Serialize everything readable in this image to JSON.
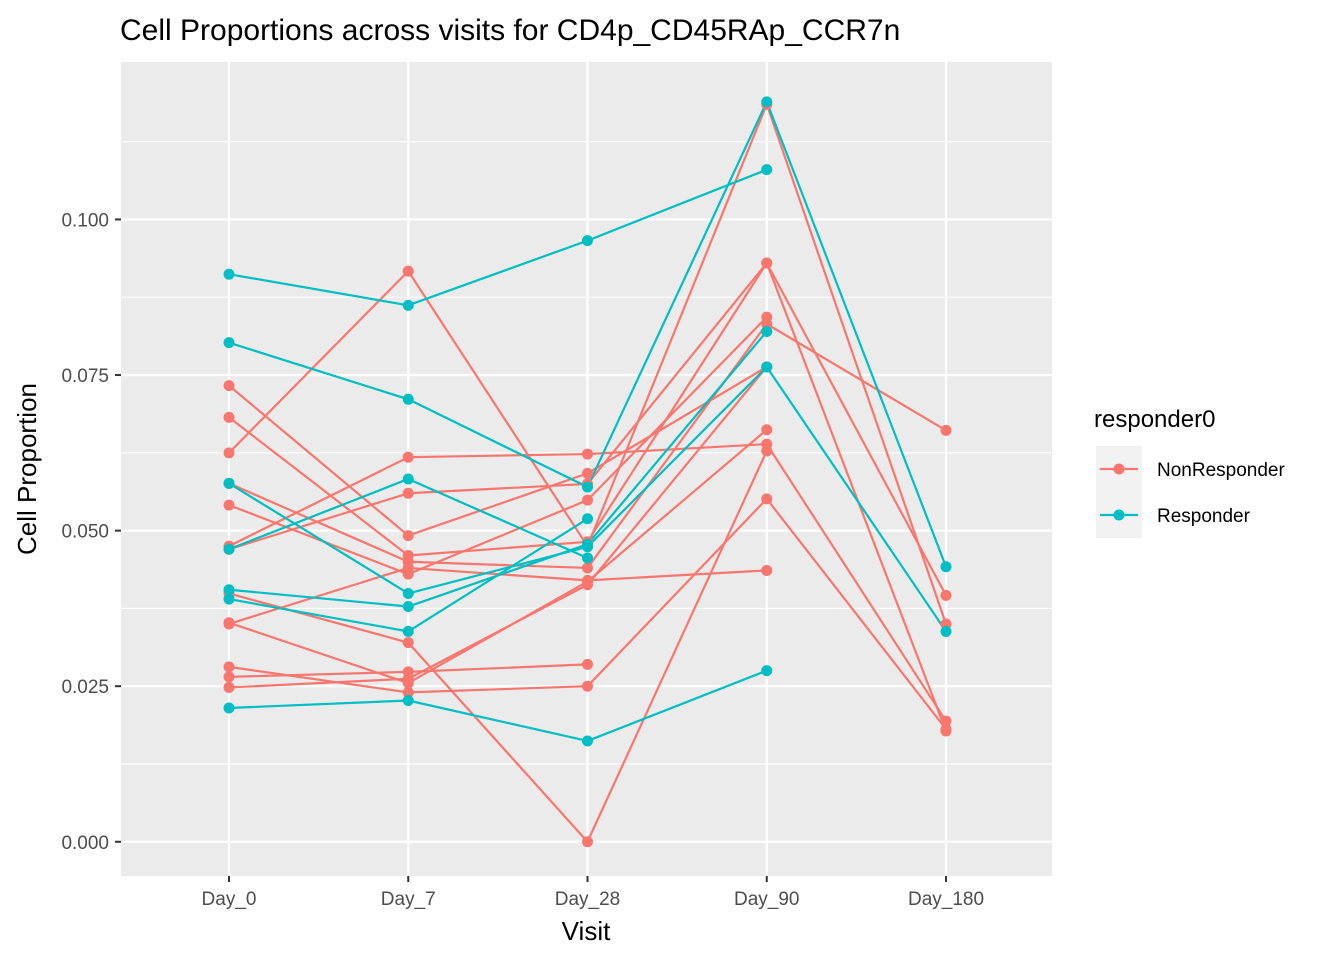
{
  "chart_data": {
    "type": "line",
    "title": "Cell Proportions across visits for CD4p_CD45RAp_CCR7n",
    "xlabel": "Visit",
    "ylabel": "Cell Proportion",
    "categories": [
      "Day_0",
      "Day_7",
      "Day_28",
      "Day_90",
      "Day_180"
    ],
    "yticks": [
      "0.000",
      "0.025",
      "0.050",
      "0.075",
      "0.100"
    ],
    "ylim": [
      -0.0055,
      0.1253
    ],
    "grid": true,
    "legend": {
      "title": "responder0",
      "placement": "right",
      "entries": [
        {
          "label": "NonResponder",
          "color": "#F8766D"
        },
        {
          "label": "Responder",
          "color": "#00BFC4"
        }
      ]
    },
    "colors": {
      "NonResponder": "#F8766D",
      "Responder": "#00BFC4"
    },
    "series": [
      {
        "group": "NonResponder",
        "values": [
          0.0733,
          0.0492,
          0.0592,
          0.0763,
          null
        ]
      },
      {
        "group": "NonResponder",
        "values": [
          0.0625,
          0.0917,
          0.0475,
          0.1185,
          0.035
        ]
      },
      {
        "group": "NonResponder",
        "values": [
          0.0682,
          0.046,
          0.0482,
          0.093,
          0.0178
        ]
      },
      {
        "group": "NonResponder",
        "values": [
          0.0576,
          0.045,
          0.044,
          0.0832,
          0.0661
        ]
      },
      {
        "group": "NonResponder",
        "values": [
          0.0541,
          0.043,
          0.0549,
          0.0843,
          null
        ]
      },
      {
        "group": "NonResponder",
        "values": [
          0.0475,
          0.0618,
          0.0623,
          0.0639,
          0.0194
        ]
      },
      {
        "group": "NonResponder",
        "values": [
          0.047,
          0.056,
          0.0575,
          0.093,
          0.0396
        ]
      },
      {
        "group": "NonResponder",
        "values": [
          0.0399,
          0.032,
          0.0,
          0.0628,
          null
        ]
      },
      {
        "group": "NonResponder",
        "values": [
          0.0352,
          0.0255,
          0.0418,
          0.0662,
          null
        ]
      },
      {
        "group": "NonResponder",
        "values": [
          0.035,
          0.044,
          0.042,
          0.0436,
          null
        ]
      },
      {
        "group": "NonResponder",
        "values": [
          0.0281,
          0.024,
          0.025,
          0.0551,
          0.0181
        ]
      },
      {
        "group": "NonResponder",
        "values": [
          0.0265,
          0.0273,
          0.0285,
          null,
          null
        ]
      },
      {
        "group": "NonResponder",
        "values": [
          0.0248,
          0.0262,
          0.0413,
          0.0763,
          null
        ]
      },
      {
        "group": "Responder",
        "values": [
          0.0912,
          0.0862,
          0.0966,
          0.108,
          null
        ]
      },
      {
        "group": "Responder",
        "values": [
          0.0802,
          0.0711,
          0.057,
          0.1189,
          0.0442
        ]
      },
      {
        "group": "Responder",
        "values": [
          0.0576,
          0.0399,
          0.0474,
          0.0763,
          0.0338
        ]
      },
      {
        "group": "Responder",
        "values": [
          0.047,
          0.0583,
          0.0456,
          null,
          null
        ]
      },
      {
        "group": "Responder",
        "values": [
          0.0405,
          0.0378,
          0.0478,
          0.082,
          null
        ]
      },
      {
        "group": "Responder",
        "values": [
          0.039,
          0.0338,
          0.0519,
          null,
          null
        ]
      },
      {
        "group": "Responder",
        "values": [
          0.0215,
          0.0227,
          0.0162,
          0.0275,
          null
        ]
      }
    ]
  }
}
